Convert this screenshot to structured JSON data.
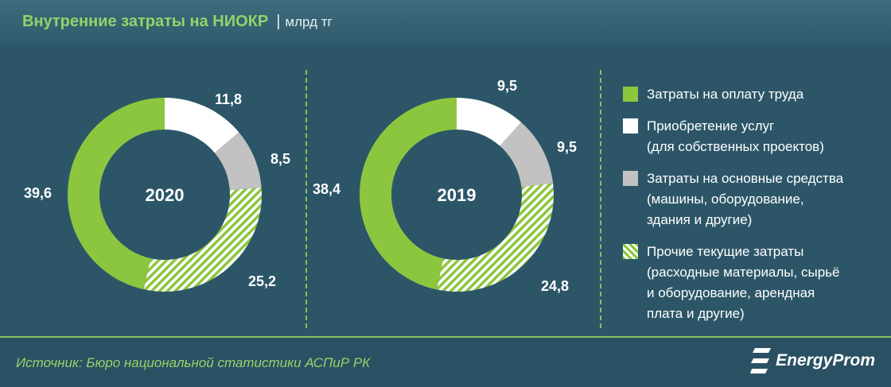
{
  "header": {
    "title": "Внутренние затраты на НИОКР",
    "separator": "|",
    "unit": "млрд тг"
  },
  "colors": {
    "background": "#2c5668",
    "labor": "#8cc63f",
    "services": "#ffffff",
    "fixed_assets": "#c2c2c2",
    "other": "#8cc63f"
  },
  "legend": {
    "items": [
      {
        "text": "Затраты на оплату труда",
        "pattern": "solid-green"
      },
      {
        "text": "Приобретение услуг\n(для собственных проектов)",
        "pattern": "white"
      },
      {
        "text": "Затраты на основные средства\n(машины, оборудование,\nздания и другие)",
        "pattern": "gray"
      },
      {
        "text": "Прочие текущие затраты\n(расходные материалы, сырьё\nи оборудование, арендная\nплата и другие)",
        "pattern": "hatched-green"
      }
    ]
  },
  "chart_data": [
    {
      "type": "pie",
      "center_label": "2020",
      "slices": [
        {
          "category": "Приобретение услуг",
          "value": 11.8,
          "label": "11,8"
        },
        {
          "category": "Затраты на основные средства",
          "value": 8.5,
          "label": "8,5"
        },
        {
          "category": "Прочие текущие затраты",
          "value": 25.2,
          "label": "25,2"
        },
        {
          "category": "Затраты на оплату труда",
          "value": 39.6,
          "label": "39,6"
        }
      ]
    },
    {
      "type": "pie",
      "center_label": "2019",
      "slices": [
        {
          "category": "Приобретение услуг",
          "value": 9.5,
          "label": "9,5"
        },
        {
          "category": "Затраты на основные средства",
          "value": 9.5,
          "label": "9,5"
        },
        {
          "category": "Прочие текущие затраты",
          "value": 24.8,
          "label": "24,8"
        },
        {
          "category": "Затраты на оплату труда",
          "value": 38.4,
          "label": "38,4"
        }
      ]
    }
  ],
  "footer": {
    "source": "Источник: Бюро национальной  статистики АСПиР РК",
    "logo_text": "EnergyProm"
  }
}
